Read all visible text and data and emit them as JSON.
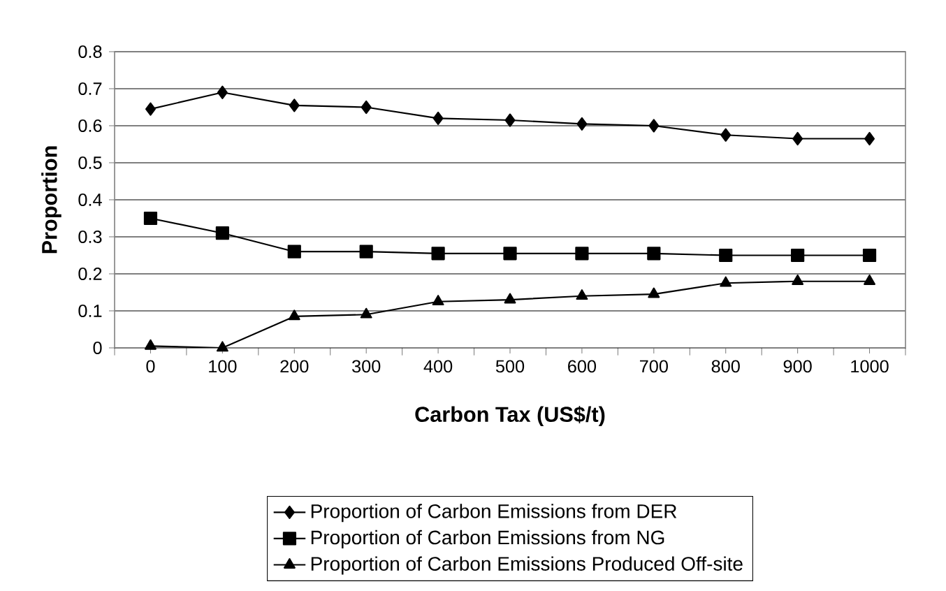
{
  "chart_data": {
    "type": "line",
    "xlabel": "Carbon Tax (US$/t)",
    "ylabel": "Proportion",
    "categories": [
      "0",
      "100",
      "200",
      "300",
      "400",
      "500",
      "600",
      "700",
      "800",
      "900",
      "1000"
    ],
    "series": [
      {
        "name": "Proportion of Carbon Emissions from DER",
        "color": "#000000",
        "marker": "diamond",
        "values": [
          0.645,
          0.69,
          0.655,
          0.65,
          0.62,
          0.615,
          0.605,
          0.6,
          0.575,
          0.565,
          0.565
        ]
      },
      {
        "name": "Proportion of Carbon Emissions from NG",
        "color": "#000000",
        "marker": "square",
        "values": [
          0.35,
          0.31,
          0.26,
          0.26,
          0.255,
          0.255,
          0.255,
          0.255,
          0.25,
          0.25,
          0.25
        ]
      },
      {
        "name": "Proportion of Carbon Emissions Produced Off-site",
        "color": "#000000",
        "marker": "triangle",
        "values": [
          0.005,
          0.0,
          0.085,
          0.09,
          0.125,
          0.13,
          0.14,
          0.145,
          0.175,
          0.18,
          0.18
        ]
      }
    ],
    "ylim": [
      0,
      0.8
    ],
    "yticks": [
      0,
      0.1,
      0.2,
      0.3,
      0.4,
      0.5,
      0.6,
      0.7,
      0.8
    ],
    "grid": "y",
    "legend": "bottom",
    "line_style": "solid"
  }
}
